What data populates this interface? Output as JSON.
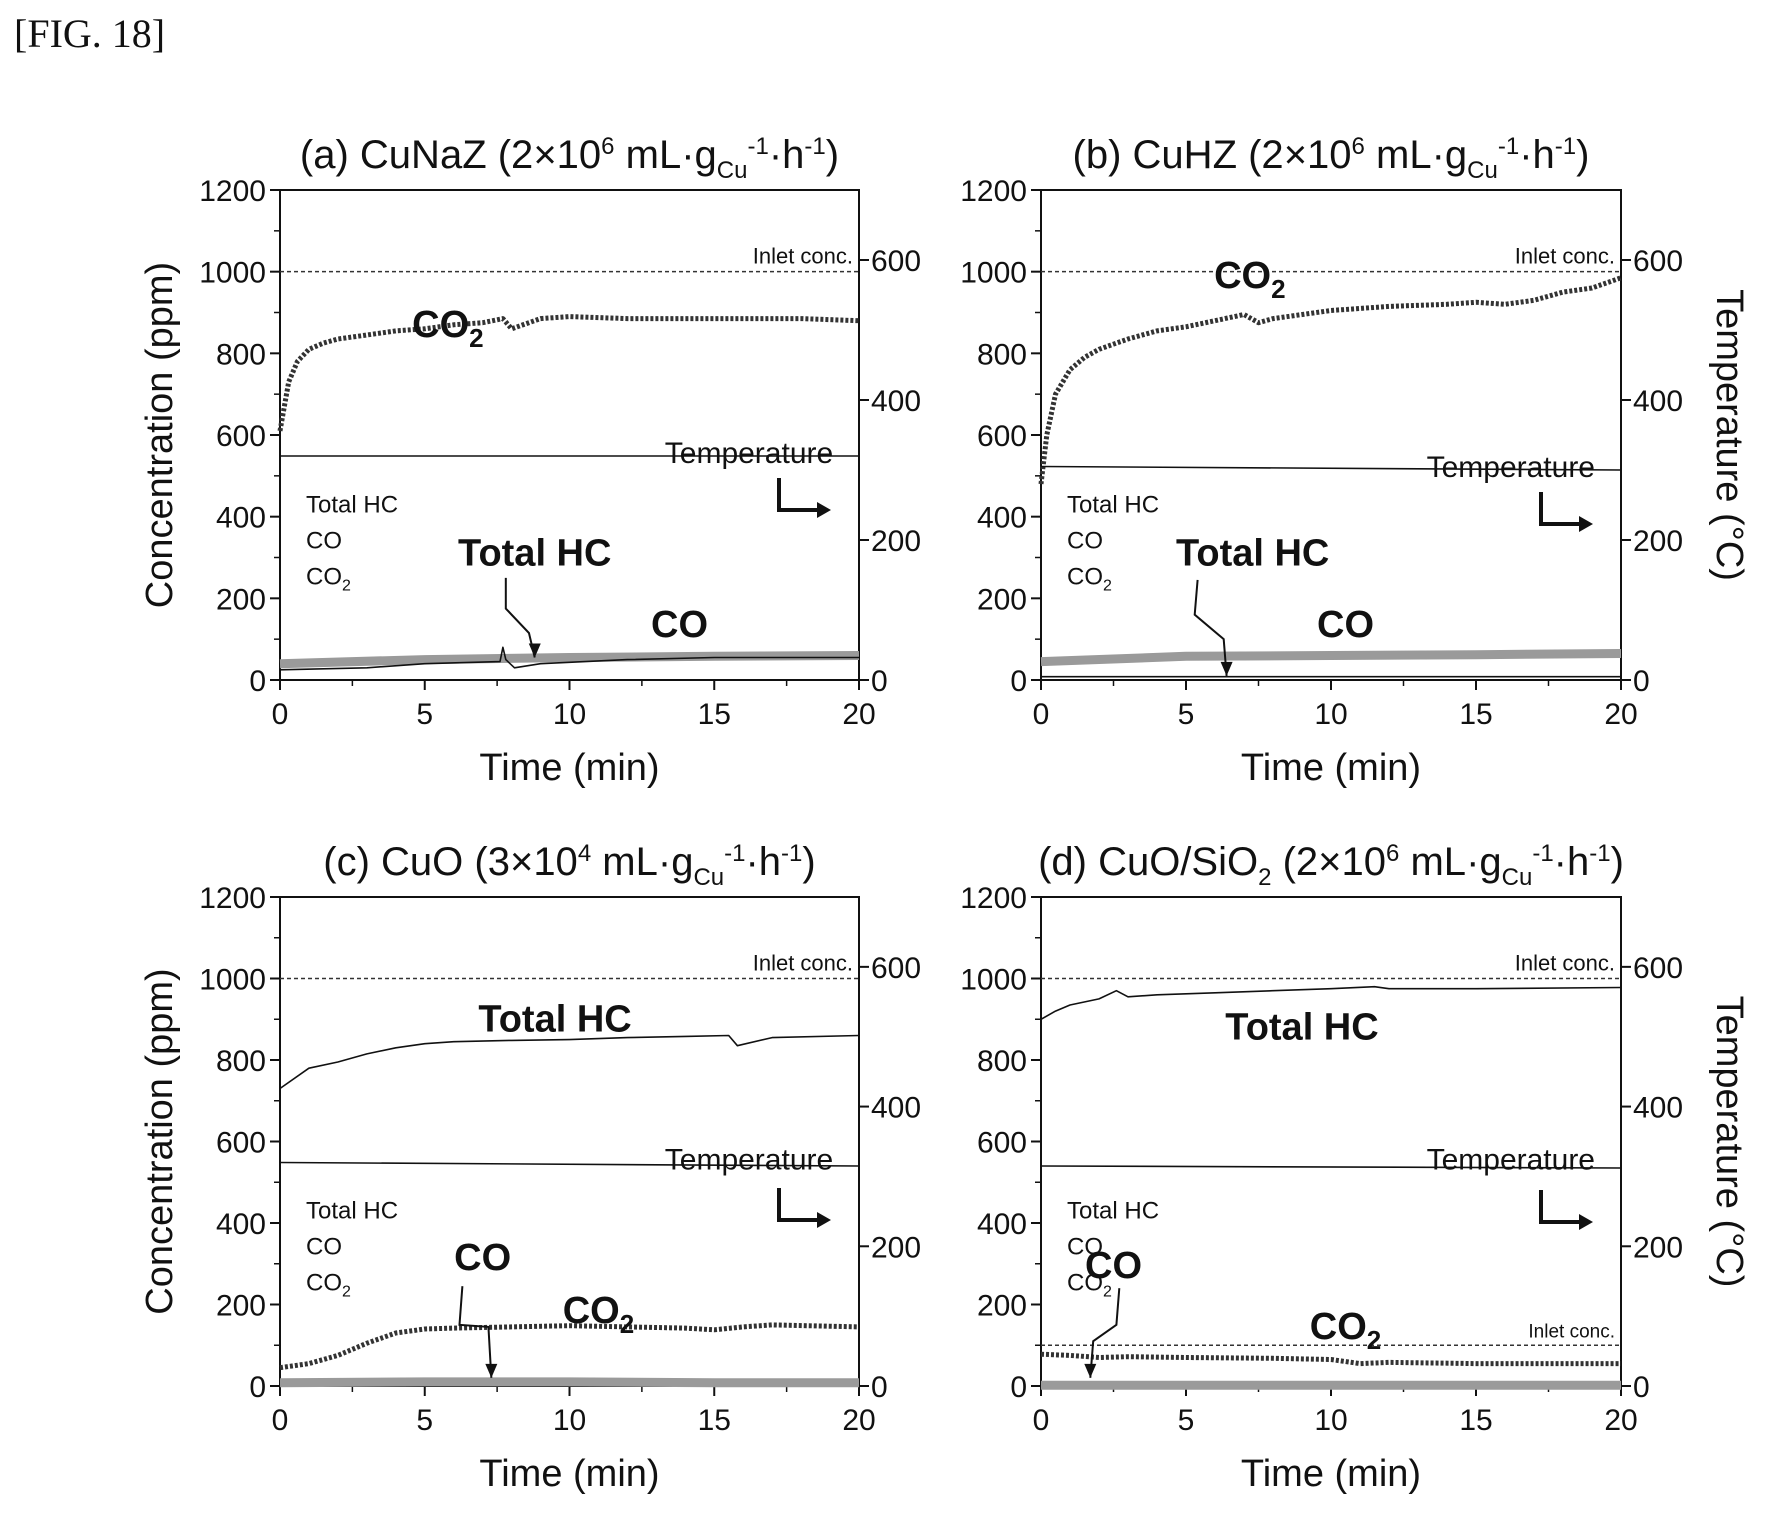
{
  "figure_label": "[FIG. 18]",
  "colors": {
    "co2": "#333333",
    "co": "#9a9a9a",
    "hc": "#111111",
    "temperature": "#111111",
    "axis": "#111111"
  },
  "chart_data": [
    {
      "type": "line",
      "title_parts": [
        "(a) CuNaZ (2",
        "×",
        "10",
        "6",
        " mL",
        "·",
        "g",
        "Cu",
        "-1",
        "·",
        "h",
        "-1",
        ")"
      ],
      "xlabel": "Time (min)",
      "ylabel": "Concentration (ppm)",
      "y2label": "",
      "xlim": [
        0,
        20
      ],
      "ylim": [
        0,
        1200
      ],
      "y2lim": [
        0,
        700
      ],
      "xticks": [
        "0",
        "5",
        "10",
        "15",
        "20"
      ],
      "yticks": [
        "0",
        "200",
        "400",
        "600",
        "800",
        "1000",
        "1200"
      ],
      "y2ticks": [
        "0",
        "200",
        "400",
        "600"
      ],
      "inlet_lines": [
        {
          "y": 1000,
          "label": "Inlet conc."
        }
      ],
      "legend": [
        "Total HC",
        "CO",
        "CO2"
      ],
      "series": [
        {
          "key": "co2",
          "x": [
            0,
            0.3,
            0.6,
            1,
            1.5,
            2,
            3,
            4,
            5,
            6,
            7,
            7.7,
            8,
            9,
            10,
            12,
            15,
            17,
            18,
            20
          ],
          "y": [
            610,
            730,
            780,
            810,
            825,
            835,
            845,
            855,
            860,
            870,
            875,
            885,
            860,
            885,
            890,
            885,
            885,
            885,
            885,
            880
          ]
        },
        {
          "key": "co",
          "x": [
            0,
            5,
            10,
            15,
            20
          ],
          "y": [
            40,
            50,
            55,
            58,
            60
          ]
        },
        {
          "key": "hc",
          "x": [
            0,
            3,
            5,
            7.6,
            7.7,
            7.8,
            8.1,
            9,
            12,
            15,
            20
          ],
          "y": [
            25,
            30,
            40,
            45,
            80,
            50,
            30,
            40,
            50,
            55,
            55
          ]
        },
        {
          "key": "temperature",
          "x": [
            0,
            20
          ],
          "y": [
            320,
            320
          ]
        }
      ],
      "annotations": [
        {
          "text": "CO",
          "sub": "2",
          "x": 5.8,
          "y": 840,
          "axis": "y1"
        },
        {
          "text": "Temperature",
          "x": 16.2,
          "y": 310,
          "axis": "y2"
        },
        {
          "text": "Total HC",
          "x": 8.8,
          "y": 280,
          "axis": "y1"
        },
        {
          "text": "CO",
          "x": 13.8,
          "y": 105,
          "axis": "y1"
        }
      ]
    },
    {
      "type": "line",
      "title_parts": [
        "(b) CuHZ (2",
        "×",
        "10",
        "6",
        " mL",
        "·",
        "g",
        "Cu",
        "-1",
        "·",
        "h",
        "-1",
        ")"
      ],
      "xlabel": "Time (min)",
      "ylabel": "",
      "y2label": "Temperature (°C)",
      "xlim": [
        0,
        20
      ],
      "ylim": [
        0,
        1200
      ],
      "y2lim": [
        0,
        700
      ],
      "xticks": [
        "0",
        "5",
        "10",
        "15",
        "20"
      ],
      "yticks": [
        "0",
        "200",
        "400",
        "600",
        "800",
        "1000",
        "1200"
      ],
      "y2ticks": [
        "0",
        "200",
        "400",
        "600"
      ],
      "inlet_lines": [
        {
          "y": 1000,
          "label": "Inlet conc."
        }
      ],
      "legend": [
        "Total HC",
        "CO",
        "CO2"
      ],
      "series": [
        {
          "key": "co2",
          "x": [
            0,
            0.2,
            0.5,
            1,
            1.5,
            2,
            3,
            4,
            5,
            6,
            7,
            7.5,
            8,
            10,
            12,
            14,
            15,
            16,
            17,
            18,
            19,
            20
          ],
          "y": [
            480,
            600,
            700,
            760,
            790,
            810,
            835,
            855,
            865,
            880,
            895,
            875,
            885,
            905,
            915,
            920,
            925,
            920,
            930,
            950,
            960,
            985
          ]
        },
        {
          "key": "co",
          "x": [
            0,
            5,
            10,
            15,
            20
          ],
          "y": [
            45,
            58,
            60,
            62,
            65
          ]
        },
        {
          "key": "hc",
          "x": [
            0,
            20
          ],
          "y": [
            8,
            8
          ]
        },
        {
          "key": "temperature",
          "x": [
            0,
            20
          ],
          "y": [
            305,
            300
          ]
        }
      ],
      "annotations": [
        {
          "text": "CO",
          "sub": "2",
          "x": 7.2,
          "y": 960,
          "axis": "y1"
        },
        {
          "text": "Temperature",
          "x": 16.2,
          "y": 290,
          "axis": "y2"
        },
        {
          "text": "Total HC",
          "x": 7.3,
          "y": 280,
          "axis": "y1"
        },
        {
          "text": "CO",
          "x": 10.5,
          "y": 105,
          "axis": "y1"
        }
      ]
    },
    {
      "type": "line",
      "title_parts": [
        "(c) CuO (3",
        "×",
        "10",
        "4",
        " mL",
        "·",
        "g",
        "Cu",
        "-1",
        "·",
        "h",
        "-1",
        ")"
      ],
      "xlabel": "Time (min)",
      "ylabel": "Concentration (ppm)",
      "y2label": "",
      "xlim": [
        0,
        20
      ],
      "ylim": [
        0,
        1200
      ],
      "y2lim": [
        0,
        700
      ],
      "xticks": [
        "0",
        "5",
        "10",
        "15",
        "20"
      ],
      "yticks": [
        "0",
        "200",
        "400",
        "600",
        "800",
        "1000",
        "1200"
      ],
      "y2ticks": [
        "0",
        "200",
        "400",
        "600"
      ],
      "inlet_lines": [
        {
          "y": 1000,
          "label": "Inlet conc."
        }
      ],
      "legend": [
        "Total HC",
        "CO",
        "CO2"
      ],
      "series": [
        {
          "key": "hc",
          "x": [
            0,
            1,
            2,
            3,
            4,
            5,
            6,
            8,
            10,
            12,
            14,
            15.5,
            15.8,
            17,
            20
          ],
          "y": [
            730,
            780,
            795,
            815,
            830,
            840,
            845,
            848,
            850,
            855,
            858,
            860,
            835,
            855,
            860
          ]
        },
        {
          "key": "co2",
          "x": [
            0,
            1,
            2,
            3,
            4,
            5,
            6,
            8,
            10,
            12,
            14,
            15,
            16,
            17,
            20
          ],
          "y": [
            45,
            55,
            75,
            105,
            130,
            140,
            142,
            145,
            148,
            145,
            142,
            138,
            145,
            150,
            145
          ]
        },
        {
          "key": "co",
          "x": [
            0,
            5,
            10,
            15,
            20
          ],
          "y": [
            8,
            10,
            10,
            8,
            8
          ]
        },
        {
          "key": "temperature",
          "x": [
            0,
            20
          ],
          "y": [
            320,
            315
          ]
        }
      ],
      "annotations": [
        {
          "text": "Total HC",
          "x": 9.5,
          "y": 870,
          "axis": "y1"
        },
        {
          "text": "Temperature",
          "x": 16.2,
          "y": 310,
          "axis": "y2"
        },
        {
          "text": "CO",
          "x": 7.0,
          "y": 285,
          "axis": "y1"
        },
        {
          "text": "CO",
          "sub": "2",
          "x": 11.0,
          "y": 155,
          "axis": "y1"
        }
      ]
    },
    {
      "type": "line",
      "title_parts": [
        "(d) CuO/SiO",
        "",
        "",
        "",
        "",
        "",
        "",
        "",
        "",
        "",
        "",
        "",
        ""
      ],
      "title_d": true,
      "xlabel": "Time (min)",
      "ylabel": "",
      "y2label": "Temperature (°C)",
      "xlim": [
        0,
        20
      ],
      "ylim": [
        0,
        1200
      ],
      "y2lim": [
        0,
        700
      ],
      "xticks": [
        "0",
        "5",
        "10",
        "15",
        "20"
      ],
      "yticks": [
        "0",
        "200",
        "400",
        "600",
        "800",
        "1000",
        "1200"
      ],
      "y2ticks": [
        "0",
        "200",
        "400",
        "600"
      ],
      "inlet_lines": [
        {
          "y": 1000,
          "label": "Inlet conc."
        },
        {
          "y": 100,
          "label": "Inlet conc."
        }
      ],
      "legend": [
        "Total HC",
        "CO",
        "CO2"
      ],
      "series": [
        {
          "key": "hc",
          "x": [
            0,
            0.5,
            1,
            2,
            2.6,
            3,
            4,
            6,
            8,
            10,
            11.5,
            12,
            15,
            20
          ],
          "y": [
            900,
            920,
            935,
            950,
            970,
            955,
            960,
            965,
            970,
            975,
            980,
            975,
            975,
            978
          ]
        },
        {
          "key": "co2",
          "x": [
            0,
            1,
            2,
            3,
            5,
            8,
            10,
            11,
            12,
            15,
            20
          ],
          "y": [
            78,
            75,
            70,
            72,
            70,
            68,
            65,
            55,
            58,
            55,
            55
          ]
        },
        {
          "key": "co",
          "x": [
            0,
            20
          ],
          "y": [
            2,
            2
          ]
        },
        {
          "key": "temperature",
          "x": [
            0,
            20
          ],
          "y": [
            315,
            312
          ]
        }
      ],
      "annotations": [
        {
          "text": "Total HC",
          "x": 9.0,
          "y": 850,
          "axis": "y1"
        },
        {
          "text": "Temperature",
          "x": 16.2,
          "y": 310,
          "axis": "y2"
        },
        {
          "text": "CO",
          "x": 2.5,
          "y": 265,
          "axis": "y1"
        },
        {
          "text": "CO",
          "sub": "2",
          "x": 10.5,
          "y": 115,
          "axis": "y1"
        }
      ]
    }
  ]
}
